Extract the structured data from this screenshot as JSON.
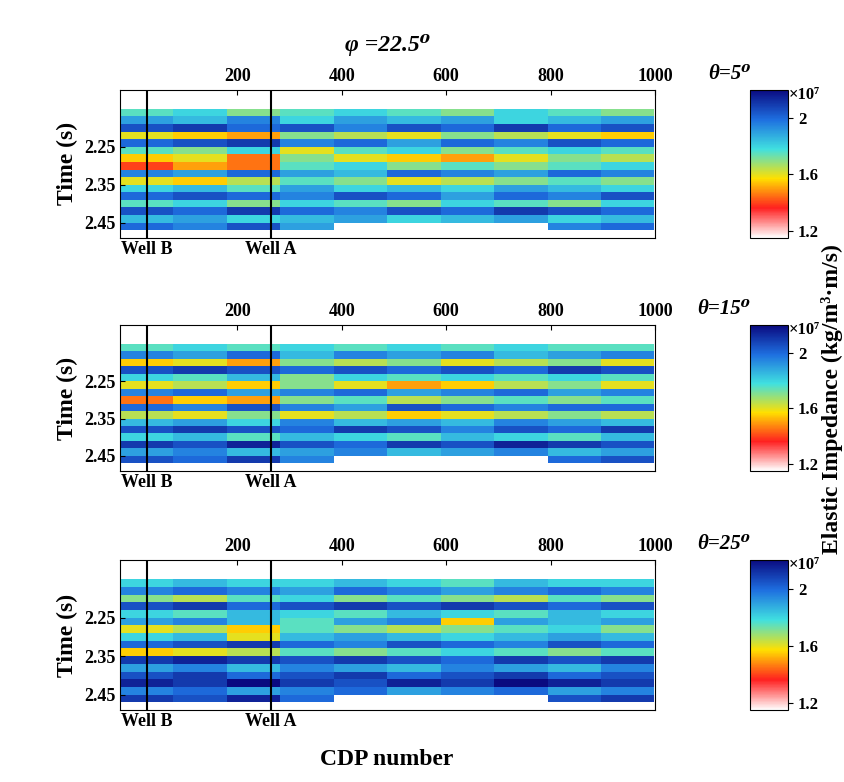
{
  "title": "φ =22.5⁰",
  "x_label": "CDP number",
  "colorbar_label": "Elastic Impedance (kg/m³·m/s)",
  "colorbar_multiplier": "×10⁷",
  "chart_data": [
    {
      "type": "heatmap",
      "colorbar_title": "θ=5⁰",
      "y_label": "Time (s)",
      "xlim": [
        -25,
        1000
      ],
      "xticks": [
        200,
        400,
        600,
        800,
        1000
      ],
      "ylim": [
        2.49,
        2.1
      ],
      "yticks": [
        2.25,
        2.35,
        2.45
      ],
      "colorbar_range": [
        1.15,
        2.2
      ],
      "colorbar_ticks": [
        1.2,
        1.6,
        2
      ],
      "annotations": [
        {
          "label": "Well B",
          "x": 27
        },
        {
          "label": "Well A",
          "x": 264
        }
      ],
      "x": [
        26,
        128,
        231,
        333,
        436,
        538,
        641,
        743,
        846,
        948
      ],
      "y": [
        2.14,
        2.16,
        2.18,
        2.2,
        2.22,
        2.24,
        2.26,
        2.28,
        2.3,
        2.32,
        2.34,
        2.36,
        2.38,
        2.4,
        2.42,
        2.44,
        2.46
      ],
      "cells": [
        [
          null,
          null,
          null,
          null,
          null,
          null,
          null,
          null,
          null,
          null
        ],
        [
          1.75,
          1.8,
          1.7,
          1.75,
          1.8,
          1.75,
          1.7,
          1.8,
          1.75,
          1.7
        ],
        [
          1.9,
          1.85,
          1.95,
          1.8,
          1.9,
          1.85,
          1.9,
          1.8,
          1.85,
          1.9
        ],
        [
          2.05,
          2.1,
          2.0,
          2.05,
          1.95,
          2.05,
          2.0,
          2.1,
          2.0,
          2.05
        ],
        [
          1.6,
          1.55,
          1.5,
          1.7,
          1.65,
          1.6,
          1.7,
          1.65,
          1.6,
          1.55
        ],
        [
          2.0,
          2.05,
          2.1,
          1.95,
          2.0,
          1.9,
          2.0,
          1.95,
          2.05,
          2.0
        ],
        [
          1.75,
          1.7,
          1.8,
          1.6,
          1.75,
          1.8,
          1.7,
          1.75,
          1.8,
          1.75
        ],
        [
          1.55,
          1.6,
          1.45,
          1.7,
          1.6,
          1.55,
          1.5,
          1.6,
          1.7,
          1.65
        ],
        [
          1.4,
          1.5,
          1.45,
          1.75,
          1.8,
          1.7,
          1.75,
          1.7,
          1.75,
          1.8
        ],
        [
          1.95,
          1.9,
          2.0,
          1.9,
          1.85,
          2.0,
          1.95,
          1.9,
          2.0,
          1.95
        ],
        [
          1.6,
          1.55,
          1.65,
          1.75,
          1.7,
          1.6,
          1.65,
          1.7,
          1.75,
          1.7
        ],
        [
          1.8,
          1.85,
          1.75,
          1.9,
          1.8,
          1.85,
          1.8,
          1.9,
          1.85,
          1.8
        ],
        [
          2.0,
          2.05,
          2.0,
          1.95,
          2.05,
          2.0,
          1.9,
          2.0,
          1.95,
          2.05
        ],
        [
          1.75,
          1.8,
          1.7,
          1.8,
          1.75,
          1.7,
          1.8,
          1.75,
          1.7,
          1.8
        ],
        [
          2.05,
          2.0,
          2.1,
          2.0,
          1.95,
          2.05,
          2.0,
          2.1,
          2.05,
          2.0
        ],
        [
          1.85,
          1.9,
          1.8,
          1.85,
          1.9,
          1.8,
          1.85,
          1.9,
          1.8,
          1.85
        ],
        [
          2.0,
          1.95,
          2.05,
          1.9,
          null,
          null,
          null,
          null,
          1.95,
          2.0
        ]
      ]
    },
    {
      "type": "heatmap",
      "colorbar_title": "θ=15⁰",
      "y_label": "Time (s)",
      "xlim": [
        -25,
        1000
      ],
      "xticks": [
        200,
        400,
        600,
        800,
        1000
      ],
      "ylim": [
        2.49,
        2.1
      ],
      "yticks": [
        2.25,
        2.35,
        2.45
      ],
      "colorbar_range": [
        1.15,
        2.2
      ],
      "colorbar_ticks": [
        1.2,
        1.6,
        2
      ],
      "annotations": [
        {
          "label": "Well B",
          "x": 27
        },
        {
          "label": "Well A",
          "x": 264
        }
      ],
      "x": [
        26,
        128,
        231,
        333,
        436,
        538,
        641,
        743,
        846,
        948
      ],
      "y": [
        2.14,
        2.16,
        2.18,
        2.2,
        2.22,
        2.24,
        2.26,
        2.28,
        2.3,
        2.32,
        2.34,
        2.36,
        2.38,
        2.4,
        2.42,
        2.44,
        2.46
      ],
      "cells": [
        [
          null,
          null,
          null,
          null,
          null,
          null,
          null,
          null,
          null,
          null
        ],
        [
          1.75,
          1.8,
          1.75,
          1.8,
          1.75,
          1.8,
          1.75,
          1.8,
          1.75,
          1.75
        ],
        [
          1.95,
          1.9,
          2.0,
          1.85,
          1.95,
          1.9,
          1.95,
          1.85,
          1.9,
          1.95
        ],
        [
          1.55,
          1.6,
          1.5,
          1.7,
          1.65,
          1.7,
          1.6,
          1.65,
          1.7,
          1.6
        ],
        [
          2.05,
          2.1,
          2.05,
          2.0,
          2.05,
          2.0,
          2.05,
          2.0,
          2.1,
          2.05
        ],
        [
          1.8,
          1.75,
          1.85,
          1.7,
          1.8,
          1.75,
          1.8,
          1.75,
          1.8,
          1.75
        ],
        [
          1.6,
          1.65,
          1.55,
          1.7,
          1.6,
          1.5,
          1.55,
          1.65,
          1.7,
          1.6
        ],
        [
          1.95,
          2.0,
          1.9,
          1.95,
          2.0,
          1.9,
          1.95,
          2.0,
          1.9,
          1.95
        ],
        [
          1.45,
          1.55,
          1.5,
          1.7,
          1.75,
          1.65,
          1.7,
          1.75,
          1.7,
          1.75
        ],
        [
          2.0,
          1.95,
          2.05,
          1.95,
          1.9,
          2.05,
          2.0,
          1.95,
          2.0,
          2.0
        ],
        [
          1.65,
          1.6,
          1.7,
          1.6,
          1.65,
          1.55,
          1.6,
          1.65,
          1.7,
          1.65
        ],
        [
          1.85,
          1.9,
          1.8,
          1.95,
          1.85,
          1.9,
          1.85,
          1.95,
          1.9,
          1.85
        ],
        [
          2.05,
          2.1,
          2.05,
          2.0,
          2.1,
          2.05,
          1.95,
          2.05,
          2.0,
          2.1
        ],
        [
          1.8,
          1.85,
          1.75,
          1.85,
          1.8,
          1.75,
          1.85,
          1.8,
          1.75,
          1.85
        ],
        [
          2.1,
          2.05,
          2.15,
          2.05,
          2.0,
          2.1,
          2.05,
          2.15,
          2.1,
          2.05
        ],
        [
          1.9,
          1.95,
          1.85,
          1.9,
          1.95,
          1.85,
          1.9,
          1.95,
          1.85,
          1.9
        ],
        [
          2.05,
          2.0,
          2.1,
          1.95,
          null,
          null,
          null,
          null,
          2.0,
          2.05
        ]
      ]
    },
    {
      "type": "heatmap",
      "colorbar_title": "θ=25⁰",
      "y_label": "Time (s)",
      "xlim": [
        -25,
        1000
      ],
      "xticks": [
        200,
        400,
        600,
        800,
        1000
      ],
      "ylim": [
        2.49,
        2.1
      ],
      "yticks": [
        2.25,
        2.35,
        2.45
      ],
      "colorbar_range": [
        1.15,
        2.2
      ],
      "colorbar_ticks": [
        1.2,
        1.6,
        2
      ],
      "annotations": [
        {
          "label": "Well B",
          "x": 27
        },
        {
          "label": "Well A",
          "x": 264
        }
      ],
      "x": [
        26,
        128,
        231,
        333,
        436,
        538,
        641,
        743,
        846,
        948
      ],
      "y": [
        2.14,
        2.16,
        2.18,
        2.2,
        2.22,
        2.24,
        2.26,
        2.28,
        2.3,
        2.32,
        2.34,
        2.36,
        2.38,
        2.4,
        2.42,
        2.44,
        2.46
      ],
      "cells": [
        [
          null,
          null,
          null,
          null,
          null,
          null,
          null,
          null,
          null,
          null
        ],
        [
          1.8,
          1.85,
          1.8,
          1.8,
          1.85,
          1.8,
          1.75,
          1.85,
          1.8,
          1.8
        ],
        [
          1.95,
          2.0,
          1.95,
          1.9,
          2.0,
          1.95,
          1.9,
          1.95,
          2.0,
          1.95
        ],
        [
          1.7,
          1.65,
          1.75,
          1.8,
          1.7,
          1.75,
          1.7,
          1.65,
          1.75,
          1.7
        ],
        [
          2.05,
          2.1,
          2.0,
          2.05,
          2.1,
          2.05,
          2.1,
          2.05,
          2.0,
          2.05
        ],
        [
          1.8,
          1.75,
          1.85,
          1.8,
          1.75,
          1.85,
          1.8,
          1.75,
          1.85,
          1.8
        ],
        [
          1.9,
          1.95,
          1.85,
          1.75,
          1.9,
          1.95,
          1.55,
          1.9,
          1.85,
          1.9
        ],
        [
          1.6,
          1.65,
          1.55,
          1.75,
          1.7,
          1.65,
          1.7,
          1.75,
          1.8,
          1.7
        ],
        [
          1.8,
          1.85,
          1.6,
          1.85,
          1.9,
          1.85,
          1.8,
          1.85,
          1.9,
          1.85
        ],
        [
          2.0,
          2.05,
          2.1,
          2.0,
          1.95,
          2.05,
          2.0,
          1.95,
          2.05,
          2.0
        ],
        [
          1.55,
          1.6,
          1.65,
          1.75,
          1.7,
          1.75,
          1.8,
          1.75,
          1.7,
          1.75
        ],
        [
          2.1,
          2.15,
          2.1,
          2.05,
          2.1,
          2.05,
          2.0,
          2.1,
          2.05,
          2.1
        ],
        [
          1.9,
          1.95,
          1.85,
          1.95,
          1.9,
          1.85,
          1.95,
          1.9,
          1.85,
          1.95
        ],
        [
          2.05,
          2.1,
          2.0,
          2.05,
          2.1,
          2.0,
          2.05,
          2.1,
          2.0,
          2.05
        ],
        [
          2.15,
          2.1,
          2.2,
          2.1,
          2.05,
          2.15,
          2.1,
          2.2,
          2.15,
          2.1
        ],
        [
          1.95,
          2.0,
          1.9,
          1.95,
          2.0,
          1.9,
          1.95,
          2.0,
          1.9,
          1.95
        ],
        [
          2.1,
          2.05,
          2.15,
          2.0,
          null,
          null,
          null,
          null,
          2.05,
          2.1
        ]
      ]
    }
  ]
}
